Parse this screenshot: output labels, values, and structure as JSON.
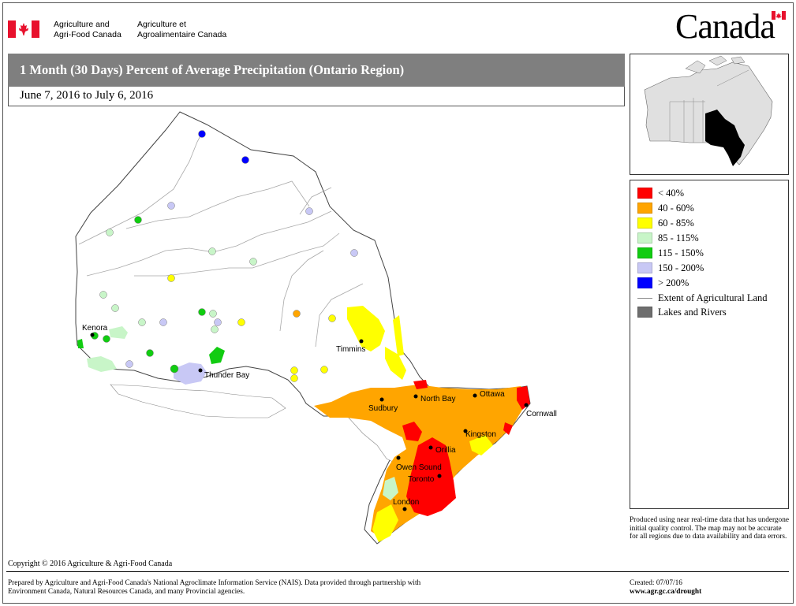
{
  "header": {
    "dept_en_line1": "Agriculture and",
    "dept_en_line2": "Agri-Food Canada",
    "dept_fr_line1": "Agriculture et",
    "dept_fr_line2": "Agroalimentaire Canada",
    "wordmark": "Canada"
  },
  "title": "1 Month (30 Days) Percent of Average Precipitation  (Ontario Region)",
  "date_range": "June 7, 2016 to July 6, 2016",
  "colors": {
    "lt40": "#ff0000",
    "40_60": "#ffa500",
    "60_85": "#ffff00",
    "85_115": "#c8f5c8",
    "115_150": "#11cc11",
    "150_200": "#c8c8f5",
    "gt200": "#0000ff",
    "lakes": "#6e6e6e"
  },
  "legend": [
    {
      "label": "< 40%",
      "color": "#ff0000"
    },
    {
      "label": "40 - 60%",
      "color": "#ffa500"
    },
    {
      "label": "60 - 85%",
      "color": "#ffff00"
    },
    {
      "label": "85 - 115%",
      "color": "#c8f5c8"
    },
    {
      "label": "115 - 150%",
      "color": "#11cc11"
    },
    {
      "label": "150 - 200%",
      "color": "#c8c8f5"
    },
    {
      "label": "> 200%",
      "color": "#0000ff"
    },
    {
      "label": "Extent of Agricultural Land",
      "color": "#888888"
    },
    {
      "label": "Lakes and Rivers",
      "color": "#6e6e6e"
    }
  ],
  "cities": [
    "Kenora",
    "Timmins",
    "Thunder Bay",
    "North Bay",
    "Ottawa",
    "Sudbury",
    "Cornwall",
    "Kingston",
    "Orillia",
    "Owen Sound",
    "Toronto",
    "London"
  ],
  "disclaimer": "Produced using near real-time data that has undergone initial quality control.  The map may not be accurate for all regions due to data availability and data errors.",
  "copyright": "Copyright © 2016 Agriculture & Agri-Food Canada",
  "prepared_line1": "Prepared by Agriculture and Agri-Food Canada's National Agroclimate Information Service (NAIS).   Data provided through partnership with",
  "prepared_line2": "Environment Canada, Natural Resources Canada, and many Provincial agencies.",
  "created": "Created: 07/07/16",
  "url": "www.agr.gc.ca/drought"
}
